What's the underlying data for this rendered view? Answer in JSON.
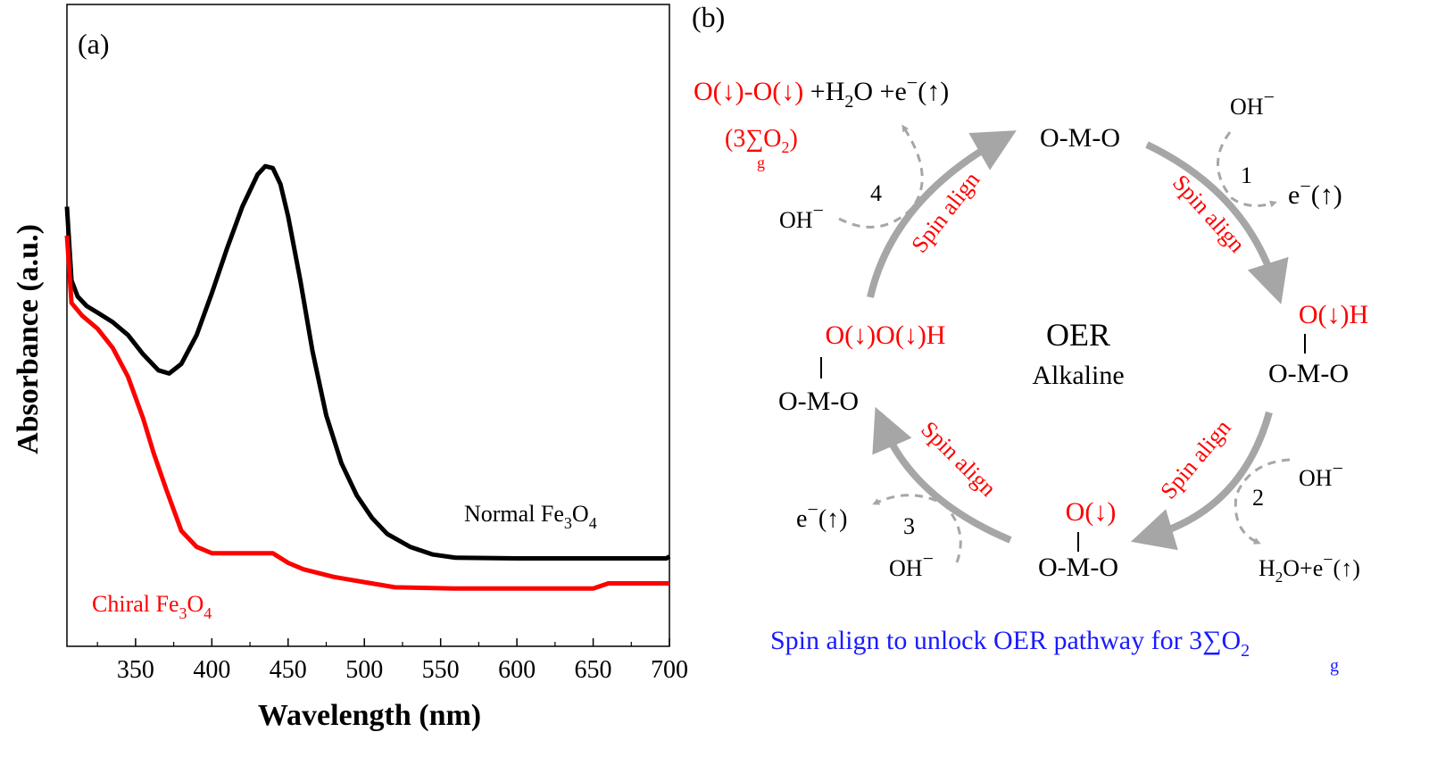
{
  "chart_data": {
    "type": "line",
    "panel_label": "(a)",
    "xlabel": "Wavelength (nm)",
    "ylabel": "Absorbance (a.u.)",
    "xlim": [
      305,
      700
    ],
    "ylim": [
      0,
      1
    ],
    "x_ticks": [
      350,
      400,
      450,
      500,
      550,
      600,
      650,
      700
    ],
    "grid": false,
    "series": [
      {
        "name": "Normal Fe3O4",
        "color": "#000000",
        "x": [
          305,
          308,
          312,
          318,
          325,
          335,
          345,
          355,
          365,
          372,
          380,
          390,
          400,
          410,
          420,
          430,
          435,
          440,
          445,
          450,
          458,
          466,
          475,
          485,
          495,
          505,
          515,
          530,
          545,
          560,
          600,
          650,
          698,
          700
        ],
        "y": [
          0.685,
          0.57,
          0.545,
          0.53,
          0.52,
          0.505,
          0.485,
          0.455,
          0.43,
          0.425,
          0.44,
          0.485,
          0.55,
          0.62,
          0.685,
          0.735,
          0.748,
          0.745,
          0.72,
          0.67,
          0.57,
          0.46,
          0.36,
          0.285,
          0.235,
          0.2,
          0.175,
          0.155,
          0.143,
          0.138,
          0.137,
          0.137,
          0.137,
          0.14
        ]
      },
      {
        "name": "Chiral Fe3O4",
        "color": "#ff0000",
        "x": [
          305,
          308,
          315,
          325,
          335,
          345,
          355,
          362,
          370,
          380,
          390,
          400,
          420,
          440,
          450,
          460,
          480,
          500,
          520,
          560,
          600,
          650,
          660,
          700
        ],
        "y": [
          0.64,
          0.535,
          0.515,
          0.495,
          0.465,
          0.42,
          0.355,
          0.3,
          0.245,
          0.18,
          0.155,
          0.145,
          0.145,
          0.145,
          0.13,
          0.12,
          0.108,
          0.1,
          0.092,
          0.09,
          0.09,
          0.09,
          0.098,
          0.098
        ]
      }
    ],
    "annotations": [
      {
        "text_main": "Normal Fe",
        "sub1": "3",
        "mid": "O",
        "sub2": "4",
        "color": "#000000"
      },
      {
        "text_main": "Chiral Fe",
        "sub1": "3",
        "mid": "O",
        "sub2": "4",
        "color": "#ff0000"
      }
    ]
  },
  "diagram": {
    "panel_label": "(b)",
    "center_title": "OER",
    "center_subtitle": "Alkaline",
    "step_numbers": [
      "1",
      "2",
      "3",
      "4"
    ],
    "arc_label": "Spin align",
    "oh": "OH",
    "minus": "−",
    "node_top": "O-M-O",
    "node_right_top": "O(↓)H",
    "node_right_bottom": "O-M-O",
    "node_bottom_top": "O(↓)",
    "node_bottom_bottom": "O-M-O",
    "node_left_top": "O(↓)O(↓)H",
    "node_left_bottom": "O-M-O",
    "step1_product": "e",
    "step1_paren": "(↑)",
    "step2_h2o": "H",
    "step2_sub": "2",
    "step2_rest": "O+e",
    "step2_paren": "(↑)",
    "step3_product": "e",
    "step3_paren": "(↑)",
    "product_red": "O(↓)-O(↓)",
    "product_h2o_a": " +H",
    "product_h2o_sub": "2",
    "product_h2o_b": "O +e",
    "product_paren": "(↑)",
    "triplet_open": "(3",
    "sigma": "∑",
    "sigma_sub": "g",
    "triplet_o": "O",
    "triplet_o_sub": "2",
    "triplet_close": ")",
    "caption_text": "Spin align to unlock OER pathway for 3",
    "caption_sigma": "∑",
    "caption_sub": "g",
    "caption_o": "O",
    "caption_o_sub": "2",
    "colors": {
      "red": "#ff0000",
      "blue": "#1a1aff",
      "arrow": "#a6a6a6",
      "dash": "#a6a6a6"
    }
  }
}
